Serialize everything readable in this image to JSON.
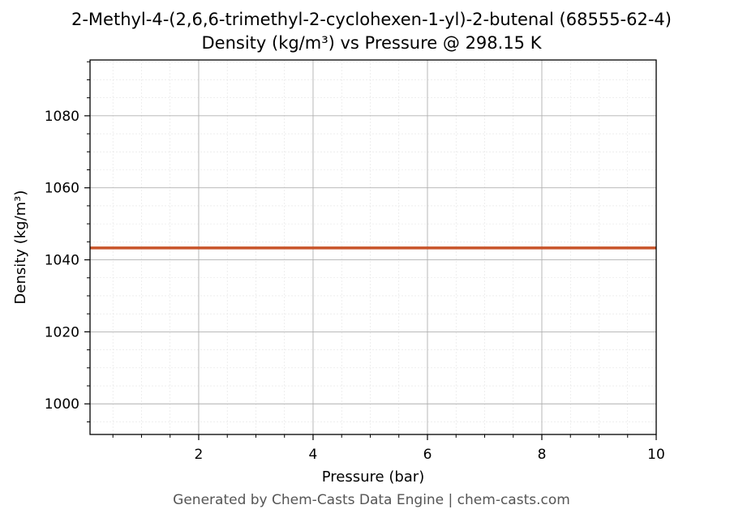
{
  "chart_data": {
    "type": "line",
    "title": "2-Methyl-4-(2,6,6-trimethyl-2-cyclohexen-1-yl)-2-butenal (68555-62-4)",
    "subtitle": "Density (kg/m³) vs Pressure @ 298.15 K",
    "xlabel": "Pressure (bar)",
    "ylabel": "Density (kg/m³)",
    "xlim": [
      0.1,
      10
    ],
    "ylim": [
      991.5,
      1095.5
    ],
    "xticks": [
      2,
      4,
      6,
      8,
      10
    ],
    "yticks": [
      1000,
      1020,
      1040,
      1060,
      1080
    ],
    "grid": true,
    "legend": "none",
    "series": [
      {
        "color": "#c8542a",
        "x": [
          0.1,
          1,
          2,
          3,
          4,
          5,
          6,
          7,
          8,
          9,
          10
        ],
        "y": [
          1043.3,
          1043.3,
          1043.3,
          1043.3,
          1043.3,
          1043.3,
          1043.3,
          1043.3,
          1043.3,
          1043.3,
          1043.3
        ]
      }
    ]
  },
  "footer": "Generated by Chem-Casts Data Engine | chem-casts.com"
}
